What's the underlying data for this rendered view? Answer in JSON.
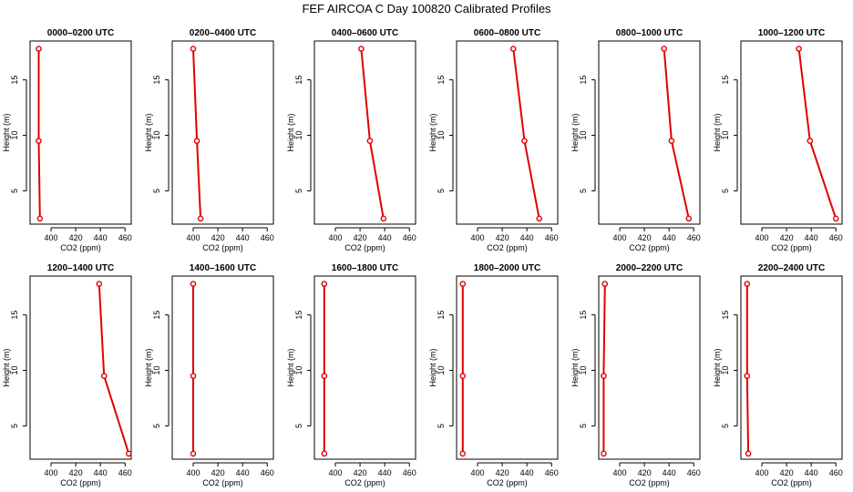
{
  "figure": {
    "title": "FEF AIRCOA C  Day 100820  Calibrated Profiles"
  },
  "style": {
    "series_color": "#e00000",
    "axis_color": "#000000"
  },
  "chart_data": [
    {
      "type": "line",
      "title": "0000–0200 UTC",
      "xlabel": "CO2 (ppm)",
      "ylabel": "Height (m)",
      "xlim": [
        383,
        465
      ],
      "ylim": [
        2.0,
        18.5
      ],
      "xticks": [
        400,
        420,
        440,
        460
      ],
      "yticks": [
        5,
        10,
        15
      ],
      "points": [
        {
          "x": 391,
          "y": 2.5
        },
        {
          "x": 390,
          "y": 9.5
        },
        {
          "x": 390,
          "y": 17.8
        }
      ]
    },
    {
      "type": "line",
      "title": "0200–0400 UTC",
      "xlabel": "CO2 (ppm)",
      "ylabel": "Height (m)",
      "xlim": [
        383,
        465
      ],
      "ylim": [
        2.0,
        18.5
      ],
      "xticks": [
        400,
        420,
        440,
        460
      ],
      "yticks": [
        5,
        10,
        15
      ],
      "points": [
        {
          "x": 406,
          "y": 2.5
        },
        {
          "x": 403,
          "y": 9.5
        },
        {
          "x": 400,
          "y": 17.8
        }
      ]
    },
    {
      "type": "line",
      "title": "0400–0600 UTC",
      "xlabel": "CO2 (ppm)",
      "ylabel": "Height (m)",
      "xlim": [
        383,
        465
      ],
      "ylim": [
        2.0,
        18.5
      ],
      "xticks": [
        400,
        420,
        440,
        460
      ],
      "yticks": [
        5,
        10,
        15
      ],
      "points": [
        {
          "x": 439,
          "y": 2.5
        },
        {
          "x": 428,
          "y": 9.5
        },
        {
          "x": 421,
          "y": 17.8
        }
      ]
    },
    {
      "type": "line",
      "title": "0600–0800 UTC",
      "xlabel": "CO2 (ppm)",
      "ylabel": "Height (m)",
      "xlim": [
        383,
        465
      ],
      "ylim": [
        2.0,
        18.5
      ],
      "xticks": [
        400,
        420,
        440,
        460
      ],
      "yticks": [
        5,
        10,
        15
      ],
      "points": [
        {
          "x": 450,
          "y": 2.5
        },
        {
          "x": 438,
          "y": 9.5
        },
        {
          "x": 429,
          "y": 17.8
        }
      ]
    },
    {
      "type": "line",
      "title": "0800–1000 UTC",
      "xlabel": "CO2 (ppm)",
      "ylabel": "Height (m)",
      "xlim": [
        383,
        465
      ],
      "ylim": [
        2.0,
        18.5
      ],
      "xticks": [
        400,
        420,
        440,
        460
      ],
      "yticks": [
        5,
        10,
        15
      ],
      "points": [
        {
          "x": 456,
          "y": 2.5
        },
        {
          "x": 442,
          "y": 9.5
        },
        {
          "x": 436,
          "y": 17.8
        }
      ]
    },
    {
      "type": "line",
      "title": "1000–1200 UTC",
      "xlabel": "CO2 (ppm)",
      "ylabel": "Height (m)",
      "xlim": [
        383,
        465
      ],
      "ylim": [
        2.0,
        18.5
      ],
      "xticks": [
        400,
        420,
        440,
        460
      ],
      "yticks": [
        5,
        10,
        15
      ],
      "points": [
        {
          "x": 460,
          "y": 2.5
        },
        {
          "x": 439,
          "y": 9.5
        },
        {
          "x": 430,
          "y": 17.8
        }
      ]
    },
    {
      "type": "line",
      "title": "1200–1400 UTC",
      "xlabel": "CO2 (ppm)",
      "ylabel": "Height (m)",
      "xlim": [
        383,
        465
      ],
      "ylim": [
        2.0,
        18.5
      ],
      "xticks": [
        400,
        420,
        440,
        460
      ],
      "yticks": [
        5,
        10,
        15
      ],
      "points": [
        {
          "x": 463,
          "y": 2.5
        },
        {
          "x": 443,
          "y": 9.5
        },
        {
          "x": 439,
          "y": 17.8
        }
      ]
    },
    {
      "type": "line",
      "title": "1400–1600 UTC",
      "xlabel": "CO2 (ppm)",
      "ylabel": "Height (m)",
      "xlim": [
        383,
        465
      ],
      "ylim": [
        2.0,
        18.5
      ],
      "xticks": [
        400,
        420,
        440,
        460
      ],
      "yticks": [
        5,
        10,
        15
      ],
      "points": [
        {
          "x": 400,
          "y": 2.5
        },
        {
          "x": 400,
          "y": 9.5
        },
        {
          "x": 400,
          "y": 17.8
        }
      ]
    },
    {
      "type": "line",
      "title": "1600–1800 UTC",
      "xlabel": "CO2 (ppm)",
      "ylabel": "Height (m)",
      "xlim": [
        383,
        465
      ],
      "ylim": [
        2.0,
        18.5
      ],
      "xticks": [
        400,
        420,
        440,
        460
      ],
      "yticks": [
        5,
        10,
        15
      ],
      "points": [
        {
          "x": 391,
          "y": 2.5
        },
        {
          "x": 391,
          "y": 9.5
        },
        {
          "x": 391,
          "y": 17.8
        }
      ]
    },
    {
      "type": "line",
      "title": "1800–2000 UTC",
      "xlabel": "CO2 (ppm)",
      "ylabel": "Height (m)",
      "xlim": [
        383,
        465
      ],
      "ylim": [
        2.0,
        18.5
      ],
      "xticks": [
        400,
        420,
        440,
        460
      ],
      "yticks": [
        5,
        10,
        15
      ],
      "points": [
        {
          "x": 388,
          "y": 2.5
        },
        {
          "x": 388,
          "y": 9.5
        },
        {
          "x": 388,
          "y": 17.8
        }
      ]
    },
    {
      "type": "line",
      "title": "2000–2200 UTC",
      "xlabel": "CO2 (ppm)",
      "ylabel": "Height (m)",
      "xlim": [
        383,
        465
      ],
      "ylim": [
        2.0,
        18.5
      ],
      "xticks": [
        400,
        420,
        440,
        460
      ],
      "yticks": [
        5,
        10,
        15
      ],
      "points": [
        {
          "x": 387,
          "y": 2.5
        },
        {
          "x": 387,
          "y": 9.5
        },
        {
          "x": 388,
          "y": 17.8
        }
      ]
    },
    {
      "type": "line",
      "title": "2200–2400 UTC",
      "xlabel": "CO2 (ppm)",
      "ylabel": "Height (m)",
      "xlim": [
        383,
        465
      ],
      "ylim": [
        2.0,
        18.5
      ],
      "xticks": [
        400,
        420,
        440,
        460
      ],
      "yticks": [
        5,
        10,
        15
      ],
      "points": [
        {
          "x": 389,
          "y": 2.5
        },
        {
          "x": 388,
          "y": 9.5
        },
        {
          "x": 388,
          "y": 17.8
        }
      ]
    }
  ]
}
